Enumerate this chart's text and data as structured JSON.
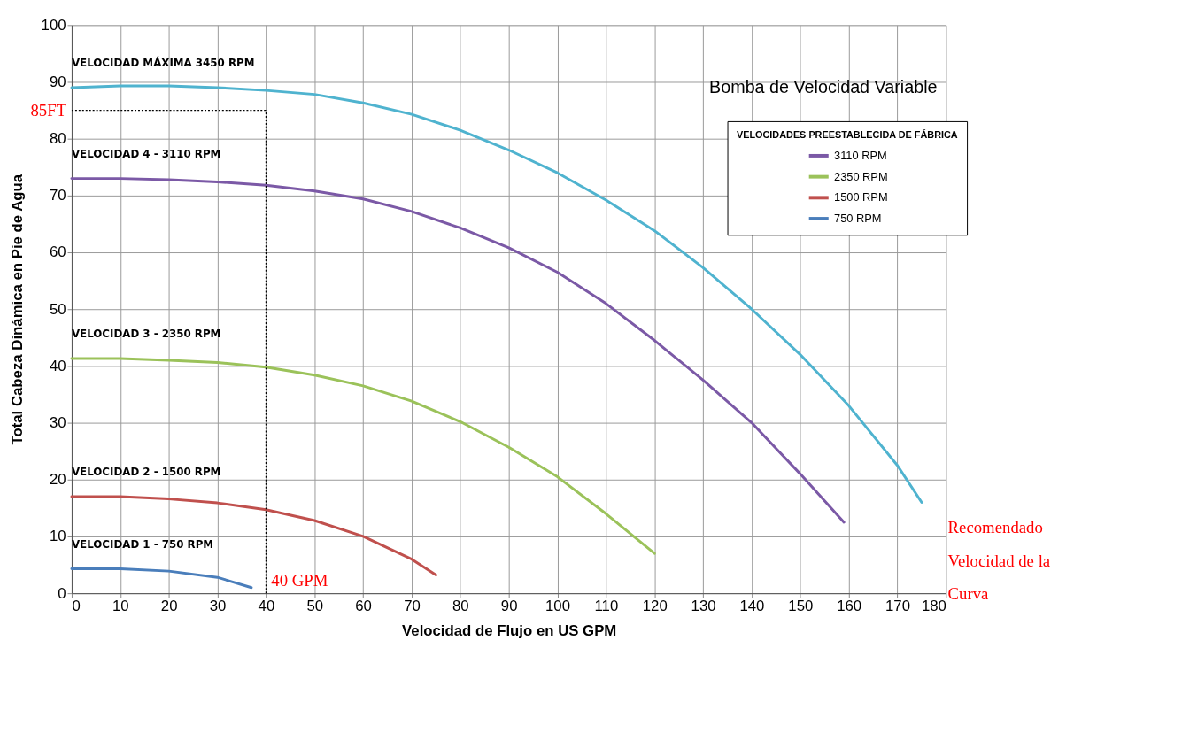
{
  "chart_data": {
    "type": "line",
    "title": "Bomba de Velocidad Variable",
    "xlabel": "Velocidad de Flujo en US GPM",
    "ylabel": "Total Cabeza  Dinámica  en Pie de Agua",
    "legend_title": "VELOCIDADES PREESTABLECIDA DE FÁBRICA",
    "xlim": [
      0,
      180
    ],
    "xticks": [
      0,
      10,
      20,
      30,
      40,
      50,
      60,
      70,
      80,
      90,
      100,
      110,
      120,
      130,
      140,
      150,
      160,
      170,
      180
    ],
    "ylim": [
      0,
      100
    ],
    "yticks": [
      0,
      10,
      20,
      30,
      40,
      50,
      60,
      70,
      80,
      90,
      100
    ],
    "grid": true,
    "legend": "top right",
    "marker": "none",
    "line_style": "solid",
    "series": [
      {
        "color": "#4fb3cf",
        "x": [
          0,
          10,
          20,
          30,
          40,
          50,
          60,
          70,
          80,
          90,
          100,
          110,
          120,
          130,
          140,
          150,
          160,
          170,
          175
        ],
        "values": [
          89,
          89.3,
          89.3,
          89,
          88.5,
          87.8,
          86.3,
          84.3,
          81.5,
          78,
          74,
          69.2,
          63.8,
          57.3,
          50,
          42,
          33,
          22.5,
          16
        ]
      },
      {
        "name": "3110 RPM",
        "color": "#7b59a6",
        "x": [
          0,
          10,
          20,
          30,
          40,
          50,
          60,
          70,
          80,
          90,
          100,
          110,
          120,
          130,
          140,
          150,
          159
        ],
        "values": [
          73,
          73,
          72.8,
          72.4,
          71.8,
          70.8,
          69.4,
          67.2,
          64.3,
          60.8,
          56.5,
          51,
          44.5,
          37.5,
          30,
          21,
          12.5
        ]
      },
      {
        "name": "2350 RPM",
        "color": "#9bc25a",
        "x": [
          0,
          10,
          20,
          30,
          40,
          50,
          60,
          70,
          80,
          90,
          100,
          110,
          120
        ],
        "values": [
          41.3,
          41.3,
          41,
          40.6,
          39.8,
          38.4,
          36.5,
          33.8,
          30.2,
          25.7,
          20.5,
          14,
          7
        ]
      },
      {
        "name": "1500 RPM",
        "color": "#c0504d",
        "x": [
          0,
          10,
          20,
          30,
          40,
          50,
          60,
          70,
          75
        ],
        "values": [
          17,
          17,
          16.6,
          15.9,
          14.7,
          12.8,
          10,
          6,
          3.2
        ]
      },
      {
        "name": "750 RPM",
        "color": "#4a7ebb",
        "x": [
          0,
          10,
          20,
          30,
          37
        ],
        "values": [
          4.3,
          4.3,
          3.9,
          2.8,
          1
        ]
      }
    ],
    "ref_lines": [
      {
        "axis": "y",
        "value": 85,
        "label": "85FT",
        "color": "#000000",
        "line_style": "dotted"
      },
      {
        "axis": "x",
        "value": 40,
        "label": "40 GPM",
        "color": "#000000",
        "line_style": "dotted"
      }
    ],
    "annotations": [
      "VELOCIDAD MÁXIMA  3450 RPM",
      "VELOCIDAD 4 - 3110 RPM",
      "VELOCIDAD 3 - 2350 RPM",
      "VELOCIDAD 2 - 1500 RPM",
      "VELOCIDAD 1 - 750 RPM",
      {
        "text": "Recomendado\nVelocidad de la\nCurva",
        "x": 175,
        "y": 16
      }
    ]
  }
}
